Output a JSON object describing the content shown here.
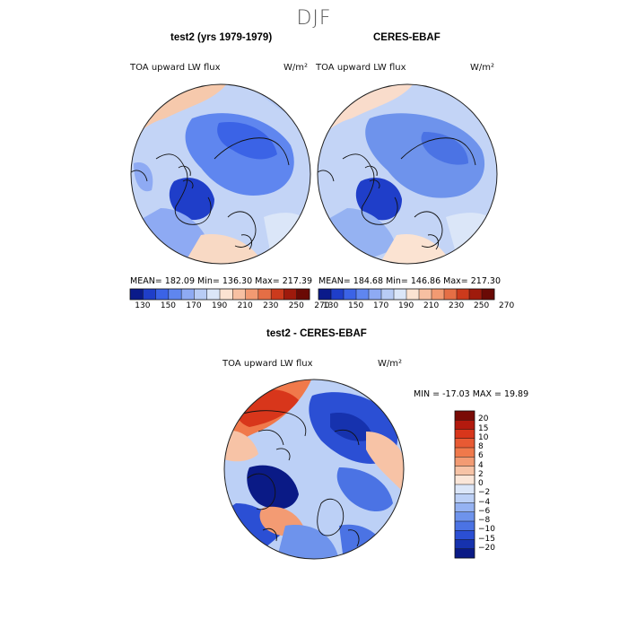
{
  "figure": {
    "season": "DJF",
    "panels": [
      {
        "title": "test2 (yrs 1979-1979)",
        "variable": "TOA upward LW flux",
        "units": "W/m²",
        "stats": "MEAN= 182.09   Min= 136.30   Max= 217.39"
      },
      {
        "title": "CERES-EBAF",
        "variable": "TOA upward LW flux",
        "units": "W/m²",
        "stats": "MEAN= 184.68   Min= 146.86   Max= 217.30"
      },
      {
        "title": "test2 - CERES-EBAF",
        "variable": "TOA upward LW flux",
        "units": "W/m²",
        "stats": "MIN = -17.03 MAX =  19.89"
      }
    ],
    "colorbar_top": {
      "ticks": [
        "130",
        "150",
        "170",
        "190",
        "210",
        "230",
        "250",
        "270"
      ],
      "colors": [
        "#0a1a8a",
        "#1f3ec9",
        "#3b63e6",
        "#5f86ef",
        "#8eaaf3",
        "#b8ccf5",
        "#dbe6f8",
        "#fbe3d2",
        "#f7c0a2",
        "#f29a72",
        "#e56e45",
        "#cc3a1c",
        "#9f1a0c",
        "#6a0a05"
      ]
    },
    "colorbar_diff": {
      "ticks": [
        "20",
        "15",
        "10",
        "8",
        "6",
        "4",
        "2",
        "0",
        "−2",
        "−4",
        "−6",
        "−8",
        "−10",
        "−15",
        "−20"
      ],
      "colors": [
        "#7a0b06",
        "#b31a0e",
        "#d8361b",
        "#e85a33",
        "#f0794b",
        "#f39b73",
        "#f7c3a6",
        "#fbe6d8",
        "#dbe6f8",
        "#bcd0f6",
        "#95b2f2",
        "#6e93ec",
        "#4b73e4",
        "#2b4fd4",
        "#1632ae",
        "#0a1a86"
      ]
    }
  }
}
